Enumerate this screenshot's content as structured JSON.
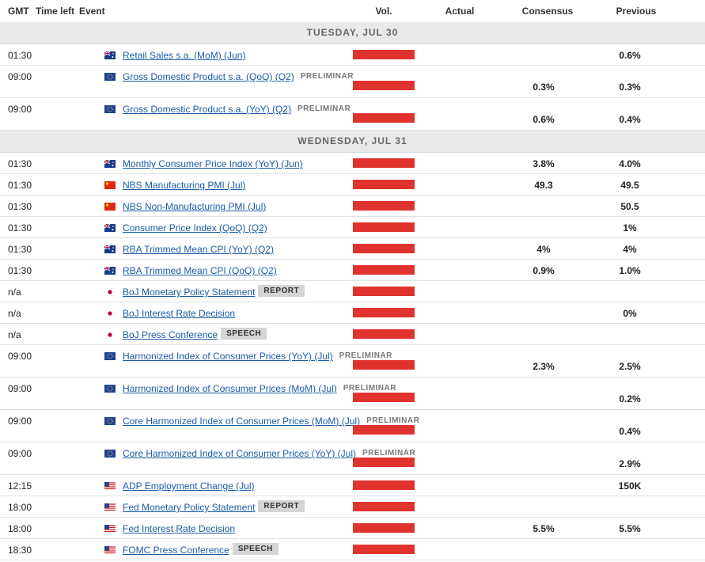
{
  "header": {
    "columns": [
      "GMT",
      "Time left",
      "Event",
      "Vol.",
      "Actual",
      "Consensus",
      "Previous"
    ]
  },
  "sections": [
    {
      "date": "TUESDAY, JUL 30",
      "rows": [
        {
          "time": "01:30",
          "flag": "au",
          "event": "Retail Sales s.a. (MoM) (Jun)",
          "previous": "0.6%"
        },
        {
          "time": "09:00",
          "flag": "eu",
          "event": "Gross Domestic Product s.a. (QoQ) (Q2)",
          "tag": "PRELIMINAR",
          "tag_style": "note",
          "consensus": "0.3%",
          "previous": "0.3%"
        },
        {
          "time": "09:00",
          "flag": "eu",
          "event": "Gross Domestic Product s.a. (YoY) (Q2)",
          "tag": "PRELIMINAR",
          "tag_style": "note",
          "consensus": "0.6%",
          "previous": "0.4%"
        }
      ]
    },
    {
      "date": "WEDNESDAY, JUL 31",
      "rows": [
        {
          "time": "01:30",
          "flag": "au",
          "event": "Monthly Consumer Price Index (YoY) (Jun)",
          "consensus": "3.8%",
          "previous": "4.0%"
        },
        {
          "time": "01:30",
          "flag": "cn",
          "event": "NBS Manufacturing PMI (Jul)",
          "consensus": "49.3",
          "previous": "49.5"
        },
        {
          "time": "01:30",
          "flag": "cn",
          "event": "NBS Non-Manufacturing PMI (Jul)",
          "previous": "50.5"
        },
        {
          "time": "01:30",
          "flag": "au",
          "event": "Consumer Price Index (QoQ) (Q2)",
          "previous": "1%"
        },
        {
          "time": "01:30",
          "flag": "au",
          "event": "RBA Trimmed Mean CPI (YoY) (Q2)",
          "consensus": "4%",
          "previous": "4%"
        },
        {
          "time": "01:30",
          "flag": "au",
          "event": "RBA Trimmed Mean CPI (QoQ) (Q2)",
          "consensus": "0.9%",
          "previous": "1.0%"
        },
        {
          "time": "n/a",
          "flag": "jp",
          "event": "BoJ Monetary Policy Statement",
          "tag": "REPORT",
          "tag_style": "badge"
        },
        {
          "time": "n/a",
          "flag": "jp",
          "event": "BoJ Interest Rate Decision",
          "previous": "0%"
        },
        {
          "time": "n/a",
          "flag": "jp",
          "event": "BoJ Press Conference",
          "tag": "SPEECH",
          "tag_style": "badge"
        },
        {
          "time": "09:00",
          "flag": "eu",
          "event": "Harmonized Index of Consumer Prices (YoY) (Jul)",
          "tag": "PRELIMINAR",
          "tag_style": "note",
          "consensus": "2.3%",
          "previous": "2.5%"
        },
        {
          "time": "09:00",
          "flag": "eu",
          "event": "Harmonized Index of Consumer Prices (MoM) (Jul)",
          "tag": "PRELIMINAR",
          "tag_style": "note",
          "previous": "0.2%"
        },
        {
          "time": "09:00",
          "flag": "eu",
          "event": "Core Harmonized Index of Consumer Prices (MoM) (Jul)",
          "tag": "PRELIMINAR",
          "tag_style": "note",
          "previous": "0.4%"
        },
        {
          "time": "09:00",
          "flag": "eu",
          "event": "Core Harmonized Index of Consumer Prices (YoY) (Jul)",
          "tag": "PRELIMINAR",
          "tag_style": "note",
          "previous": "2.9%"
        },
        {
          "time": "12:15",
          "flag": "us",
          "event": "ADP Employment Change (Jul)",
          "previous": "150K"
        },
        {
          "time": "18:00",
          "flag": "us",
          "event": "Fed Monetary Policy Statement",
          "tag": "REPORT",
          "tag_style": "badge"
        },
        {
          "time": "18:00",
          "flag": "us",
          "event": "Fed Interest Rate Decision",
          "consensus": "5.5%",
          "previous": "5.5%"
        },
        {
          "time": "18:30",
          "flag": "us",
          "event": "FOMC Press Conference",
          "tag": "SPEECH",
          "tag_style": "badge"
        }
      ]
    }
  ]
}
